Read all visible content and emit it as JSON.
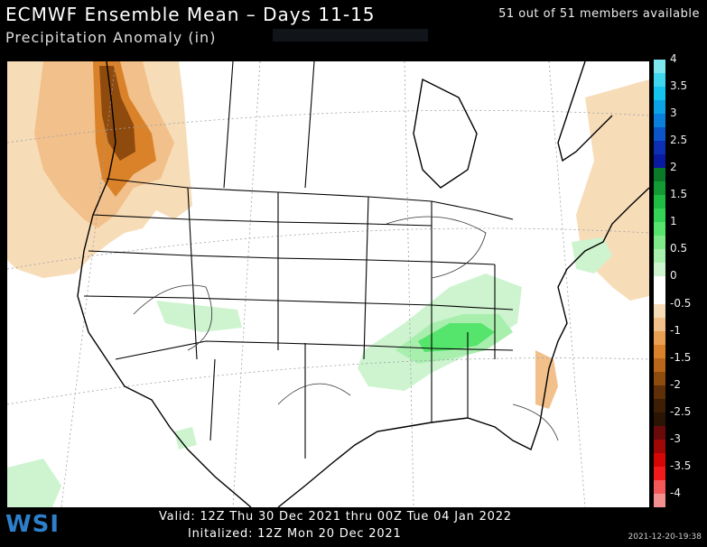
{
  "header": {
    "title": "ECMWF Ensemble Mean – Days 11-15",
    "subtitle": "Precipitation Anomaly (in)",
    "members": "51 out of 51 members available"
  },
  "colorbar": {
    "items": [
      {
        "label": "4",
        "color": "#7ee6f0"
      },
      {
        "label": "",
        "color": "#3fd7ee"
      },
      {
        "label": "3.5",
        "color": "#14c4ee"
      },
      {
        "label": "",
        "color": "#0aa3e6"
      },
      {
        "label": "3",
        "color": "#0a7fdc"
      },
      {
        "label": "",
        "color": "#0b55c8"
      },
      {
        "label": "2.5",
        "color": "#0c2fb4"
      },
      {
        "label": "",
        "color": "#0a1aa0"
      },
      {
        "label": "2",
        "color": "#0a7a28"
      },
      {
        "label": "",
        "color": "#149a34"
      },
      {
        "label": "1.5",
        "color": "#1fbd44"
      },
      {
        "label": "",
        "color": "#33d455"
      },
      {
        "label": "1",
        "color": "#55e46c"
      },
      {
        "label": "",
        "color": "#7fea8a"
      },
      {
        "label": "0.5",
        "color": "#a8efae"
      },
      {
        "label": "",
        "color": "#cdf4cf"
      },
      {
        "label": "0",
        "color": "#ffffff"
      },
      {
        "label": "",
        "color": "#ffffff"
      },
      {
        "label": "-0.5",
        "color": "#f7dcb8"
      },
      {
        "label": "",
        "color": "#f2c08a"
      },
      {
        "label": "-1",
        "color": "#e9a052"
      },
      {
        "label": "",
        "color": "#d9822a"
      },
      {
        "label": "-1.5",
        "color": "#b9651a"
      },
      {
        "label": "",
        "color": "#8f4a0e"
      },
      {
        "label": "-2",
        "color": "#5e2f08"
      },
      {
        "label": "",
        "color": "#3f1e06"
      },
      {
        "label": "-2.5",
        "color": "#2a1404"
      },
      {
        "label": "",
        "color": "#6a0a0a"
      },
      {
        "label": "-3",
        "color": "#a00808"
      },
      {
        "label": "",
        "color": "#d40606"
      },
      {
        "label": "-3.5",
        "color": "#f21a1a"
      },
      {
        "label": "",
        "color": "#f45858"
      },
      {
        "label": "-4",
        "color": "#f59090"
      }
    ]
  },
  "footer": {
    "logo": "WSI",
    "valid": "Valid: 12Z Thu 30 Dec 2021 thru 00Z Tue 04 Jan 2022",
    "initialized": "Initalized: 12Z Mon 20 Dec 2021",
    "timestamp": "2021-12-20-19:38"
  }
}
